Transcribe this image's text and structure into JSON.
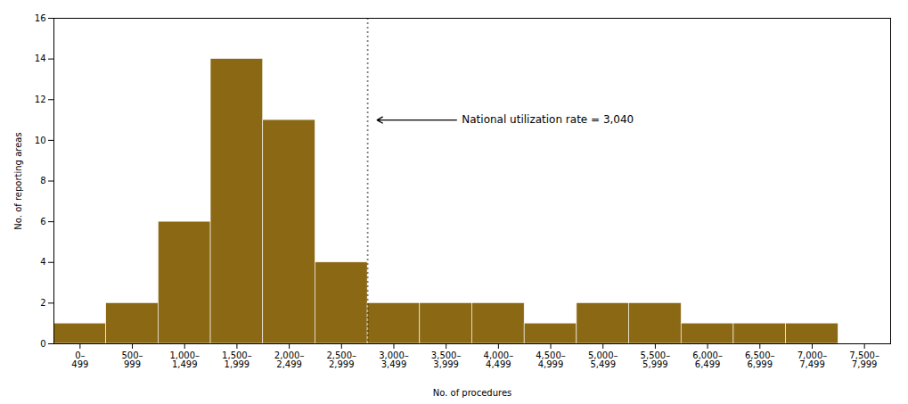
{
  "chart_data": {
    "type": "bar",
    "categories": [
      "0–\n499",
      "500–\n999",
      "1,000–\n1,499",
      "1,500–\n1,999",
      "2,000–\n2,499",
      "2,500–\n2,999",
      "3,000–\n3,499",
      "3,500–\n3,999",
      "4,000–\n4,499",
      "4,500–\n4,999",
      "5,000–\n5,499",
      "5,500–\n5,999",
      "6,000–\n6,499",
      "6,500–\n6,999",
      "7,000–\n7,499",
      "7,500–\n7,999"
    ],
    "values": [
      1,
      2,
      6,
      14,
      11,
      4,
      2,
      2,
      2,
      1,
      2,
      2,
      1,
      1,
      1,
      0
    ],
    "color": "#8B6914",
    "ylim": [
      0,
      16
    ],
    "yticks": [
      0,
      2,
      4,
      6,
      8,
      10,
      12,
      14,
      16
    ],
    "ylabel": "No. of reporting areas",
    "xlabel": "No. of procedures",
    "annotation": "National utilization rate = 3,040",
    "grid": false
  }
}
